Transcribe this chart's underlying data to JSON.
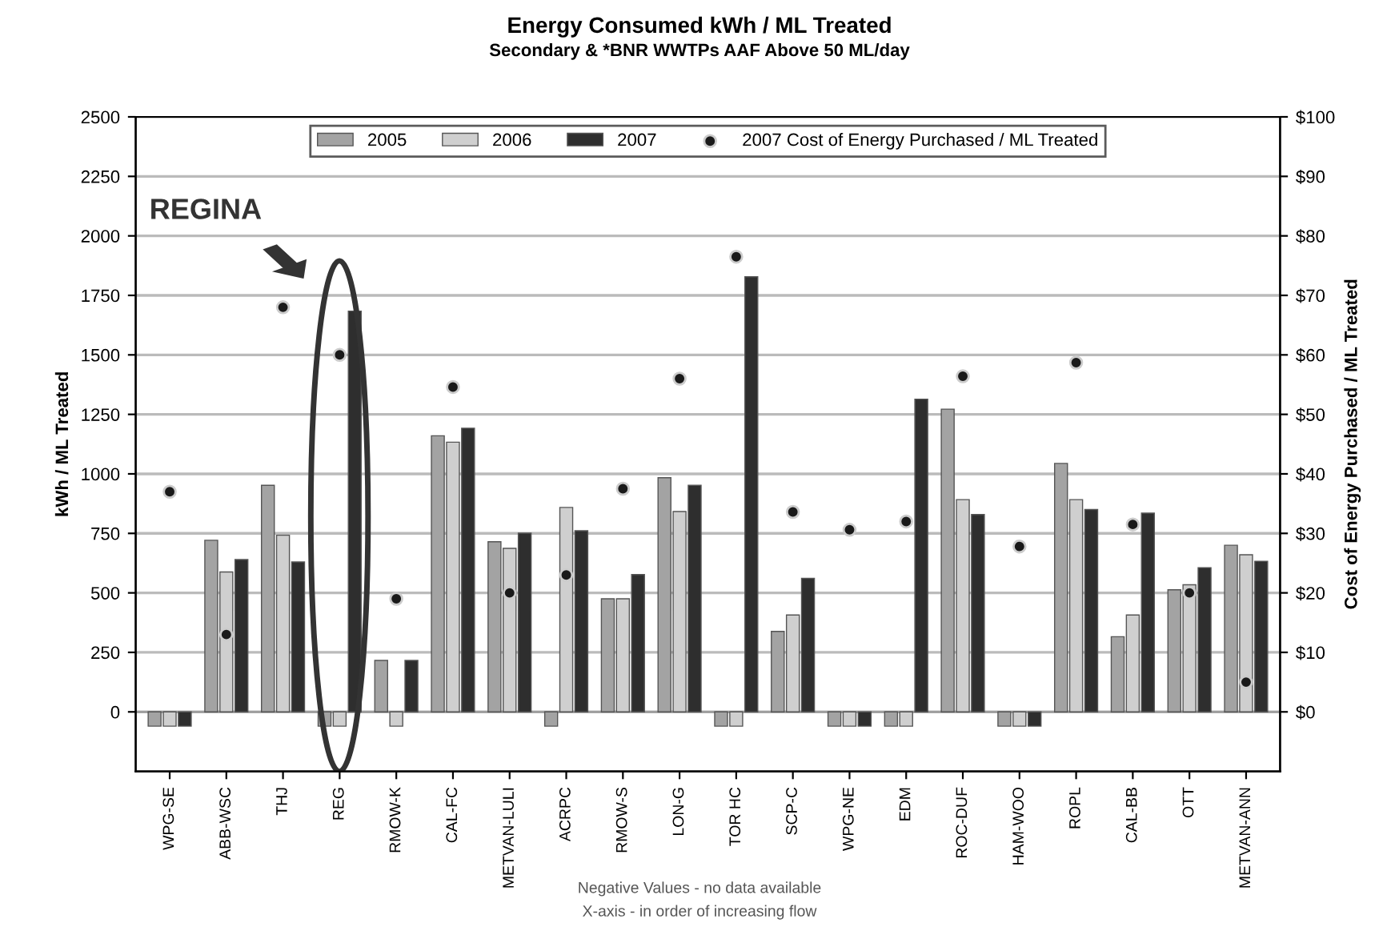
{
  "chart_data": {
    "type": "bar",
    "title": "Energy Consumed kWh / ML Treated",
    "subtitle": "Secondary & *BNR WWTPs AAF Above 50 ML/day",
    "ylabel": "kWh / ML Treated",
    "y2label": "Cost of Energy Purchased / ML Treated",
    "categories": [
      "WPG-SE",
      "ABB-WSC",
      "THJ",
      "REG",
      "RMOW-K",
      "CAL-FC",
      "METVAN-LULI",
      "ACRPC",
      "RMOW-S",
      "LON-G",
      "TOR HC",
      "SCP-C",
      "WPG-NE",
      "EDM",
      "ROC-DUF",
      "HAM-WOO",
      "ROPL",
      "CAL-BB",
      "OTT",
      "METVAN-ANN"
    ],
    "series": [
      {
        "name": "2005",
        "color": "#a3a3a3",
        "values": [
          -60,
          721,
          952,
          -60,
          216,
          1160,
          715,
          -60,
          475,
          984,
          -60,
          338,
          -60,
          -60,
          1272,
          -60,
          1044,
          316,
          513,
          700
        ]
      },
      {
        "name": "2006",
        "color": "#cfcfcf",
        "values": [
          -60,
          588,
          742,
          -60,
          -60,
          1133,
          687,
          859,
          475,
          842,
          -60,
          407,
          -60,
          -60,
          892,
          -60,
          892,
          407,
          534,
          660
        ]
      },
      {
        "name": "2007",
        "color": "#2e2e2e",
        "values": [
          -60,
          640,
          630,
          1684,
          216,
          1192,
          751,
          761,
          577,
          952,
          1828,
          561,
          -60,
          1314,
          829,
          -60,
          850,
          835,
          606,
          633
        ]
      },
      {
        "name": "2007 Cost of Energy Purchased / ML Treated",
        "type": "scatter",
        "axis": "y2",
        "color": "#1a1a1a",
        "marker": "circle",
        "values": [
          37,
          13,
          68,
          60,
          19,
          54.6,
          20,
          23,
          37.5,
          56,
          76.5,
          33.6,
          30.6,
          32,
          56.4,
          27.8,
          58.7,
          31.5,
          20,
          5
        ]
      }
    ],
    "ylim": [
      -250,
      2500
    ],
    "yticks": [
      0,
      250,
      500,
      750,
      1000,
      1250,
      1500,
      1750,
      2000,
      2250,
      2500
    ],
    "y2lim": [
      -10,
      100
    ],
    "y2ticks": [
      {
        "value": 0,
        "label": "$0"
      },
      {
        "value": 10,
        "label": "$10"
      },
      {
        "value": 20,
        "label": "$20"
      },
      {
        "value": 30,
        "label": "$30"
      },
      {
        "value": 40,
        "label": "$40"
      },
      {
        "value": 50,
        "label": "$50"
      },
      {
        "value": 60,
        "label": "$60"
      },
      {
        "value": 70,
        "label": "$70"
      },
      {
        "value": 80,
        "label": "$80"
      },
      {
        "value": 90,
        "label": "$90"
      },
      {
        "value": 100,
        "label": "$100"
      }
    ],
    "grid": "y",
    "legend": "top",
    "annotations": [
      "REGINA",
      "Negative Values - no data available",
      "X-axis - in order of increasing flow"
    ]
  }
}
